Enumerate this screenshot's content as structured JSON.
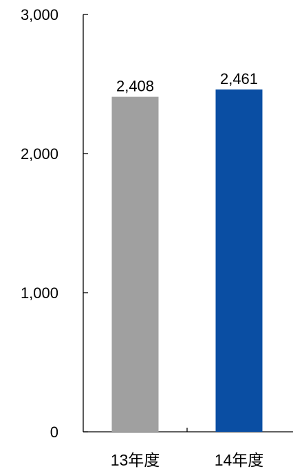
{
  "chart_data": {
    "type": "bar",
    "categories": [
      "13年度",
      "14年度"
    ],
    "values": [
      2408,
      2461
    ],
    "value_labels": [
      "2,408",
      "2,461"
    ],
    "ylim": [
      0,
      3000
    ],
    "yticks": [
      0,
      1000,
      2000,
      3000
    ],
    "ytick_labels": [
      "0",
      "1,000",
      "2,000",
      "3,000"
    ],
    "grid": false,
    "legend": "none",
    "colors": [
      "#a0a0a0",
      "#0a4ea3"
    ]
  }
}
